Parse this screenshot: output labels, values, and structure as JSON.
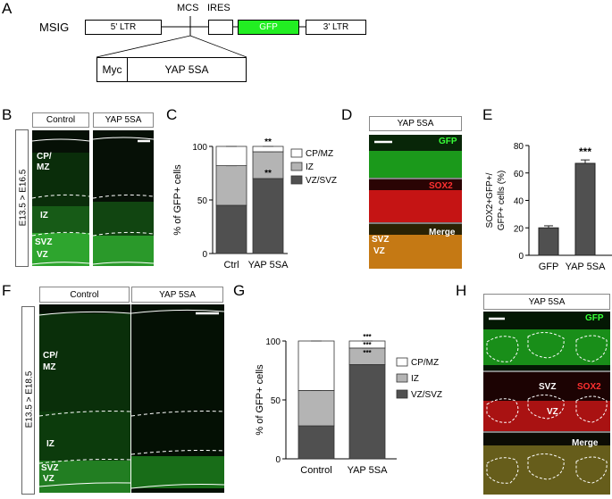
{
  "panels": [
    "A",
    "B",
    "C",
    "D",
    "E",
    "F",
    "G",
    "H"
  ],
  "construct": {
    "name": "MSIG",
    "mcs": "MCS",
    "ires": "IRES",
    "ltr5": "5' LTR",
    "gfp": "GFP",
    "ltr3": "3' LTR",
    "myc": "Myc",
    "insert": "YAP 5SA"
  },
  "panel_b": {
    "control": "Control",
    "yap": "YAP 5SA",
    "timeline": "E13.5 > E16.5",
    "cp": "CP/",
    "mz": "MZ",
    "iz": "IZ",
    "svz": "SVZ",
    "vz": "VZ"
  },
  "panel_d": {
    "header": "YAP 5SA",
    "gfp": "GFP",
    "sox2": "SOX2",
    "merge": "Merge",
    "svz": "SVZ",
    "vz": "VZ"
  },
  "panel_f": {
    "control": "Control",
    "yap": "YAP 5SA",
    "timeline": "E13.5 > E18.5",
    "cp": "CP/",
    "mz": "MZ",
    "iz": "IZ",
    "svz": "SVZ",
    "vz": "VZ"
  },
  "panel_h": {
    "header": "YAP 5SA",
    "gfp": "GFP",
    "svz": "SVZ",
    "sox2": "SOX2",
    "vz": "VZ",
    "merge": "Merge"
  },
  "colors": {
    "cp_mz": "#ffffff",
    "iz": "#b4b4b4",
    "vz_svz": "#505050",
    "bar_e_gfp": "#505050",
    "gfp_green": "#22e022",
    "sox2_red": "#e01818"
  },
  "chart_data": [
    {
      "panel": "C",
      "type": "bar",
      "stacked": true,
      "categories": [
        "Ctrl",
        "YAP 5SA"
      ],
      "ylabel": "% of GFP+ cells",
      "ylim": [
        0,
        100
      ],
      "yticks": [
        "0",
        "50",
        "100"
      ],
      "series": [
        {
          "name": "VZ/SVZ",
          "values": [
            45,
            70
          ]
        },
        {
          "name": "IZ",
          "values": [
            37,
            25
          ]
        },
        {
          "name": "CP/MZ",
          "values": [
            18,
            5
          ]
        }
      ],
      "annotations": [
        "**",
        "**"
      ]
    },
    {
      "panel": "E",
      "type": "bar",
      "categories": [
        "GFP",
        "YAP 5SA"
      ],
      "values": [
        20,
        67
      ],
      "errors": [
        1.5,
        2.5
      ],
      "ylabel": "SOX2+GFP+/ GFP+ cells (%)",
      "ylim": [
        0,
        80
      ],
      "yticks": [
        "0",
        "20",
        "40",
        "60",
        "80"
      ],
      "annotations": [
        "***"
      ]
    },
    {
      "panel": "G",
      "type": "bar",
      "stacked": true,
      "categories": [
        "Control",
        "YAP 5SA"
      ],
      "ylabel": "% of GFP+ cells",
      "ylim": [
        0,
        100
      ],
      "yticks": [
        "0",
        "50",
        "100"
      ],
      "series": [
        {
          "name": "VZ/SVZ",
          "values": [
            28,
            80
          ]
        },
        {
          "name": "IZ",
          "values": [
            30,
            14
          ]
        },
        {
          "name": "CP/MZ",
          "values": [
            42,
            6
          ]
        }
      ],
      "annotations": [
        "***",
        "***",
        "***"
      ]
    }
  ]
}
